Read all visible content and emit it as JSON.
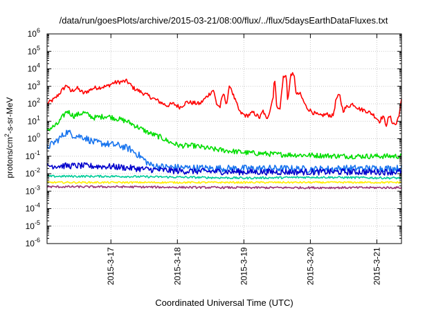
{
  "chart_data": {
    "type": "line",
    "title": "/data/run/goesPlots/archive/2015-03-21/08:00/flux/../flux/5daysEarthDataFluxes.txt",
    "xlabel": "Coordinated Universal Time (UTC)",
    "ylabel": {
      "base": "protons/cm",
      "sup": "2",
      "rest": "-s-sr-MeV"
    },
    "yscale": "log",
    "ylim_exponent": [
      -6,
      6
    ],
    "y_ticks": [
      {
        "exp": -6,
        "base": "10",
        "sup": "-6"
      },
      {
        "exp": -5,
        "base": "10",
        "sup": "-5"
      },
      {
        "exp": -4,
        "base": "10",
        "sup": "-4"
      },
      {
        "exp": -3,
        "base": "10",
        "sup": "-3"
      },
      {
        "exp": -2,
        "base": "10",
        "sup": "-2"
      },
      {
        "exp": -1,
        "base": "10",
        "sup": "-1"
      },
      {
        "exp": 0,
        "base": "10",
        "sup": "0"
      },
      {
        "exp": 1,
        "base": "10",
        "sup": "1"
      },
      {
        "exp": 2,
        "base": "10",
        "sup": "2"
      },
      {
        "exp": 3,
        "base": "10",
        "sup": "3"
      },
      {
        "exp": 4,
        "base": "10",
        "sup": "4"
      },
      {
        "exp": 5,
        "base": "10",
        "sup": "5"
      },
      {
        "exp": 6,
        "base": "10",
        "sup": "6"
      }
    ],
    "x_range_days": [
      0,
      5.33
    ],
    "x_ticks": [
      {
        "t": 0.96,
        "label": "2015-3-17"
      },
      {
        "t": 1.96,
        "label": "2015-3-18"
      },
      {
        "t": 2.96,
        "label": "2015-3-19"
      },
      {
        "t": 3.96,
        "label": "2015-3-20"
      },
      {
        "t": 4.96,
        "label": "2015-3-21"
      }
    ],
    "grid": true,
    "series": [
      {
        "color": "#ff0000",
        "noise": 0.12,
        "points": [
          [
            0,
            2.0
          ],
          [
            0.12,
            2.3
          ],
          [
            0.3,
            3.1
          ],
          [
            0.35,
            2.7
          ],
          [
            0.45,
            2.9
          ],
          [
            0.55,
            2.6
          ],
          [
            0.7,
            2.9
          ],
          [
            0.9,
            3.0
          ],
          [
            1.0,
            3.2
          ],
          [
            1.2,
            3.3
          ],
          [
            1.3,
            2.9
          ],
          [
            1.5,
            2.5
          ],
          [
            1.7,
            2.1
          ],
          [
            1.8,
            1.9
          ],
          [
            1.9,
            2.0
          ],
          [
            2.0,
            1.8
          ],
          [
            2.1,
            2.1
          ],
          [
            2.3,
            2.0
          ],
          [
            2.4,
            2.4
          ],
          [
            2.5,
            2.8
          ],
          [
            2.55,
            2.0
          ],
          [
            2.6,
            1.8
          ],
          [
            2.65,
            2.6
          ],
          [
            2.7,
            2.0
          ],
          [
            2.75,
            3.1
          ],
          [
            2.8,
            2.5
          ],
          [
            2.85,
            2.0
          ],
          [
            2.9,
            1.5
          ],
          [
            3.0,
            1.3
          ],
          [
            3.1,
            1.5
          ],
          [
            3.2,
            1.2
          ],
          [
            3.25,
            1.6
          ],
          [
            3.3,
            1.1
          ],
          [
            3.35,
            1.6
          ],
          [
            3.4,
            2.4
          ],
          [
            3.42,
            3.6
          ],
          [
            3.45,
            2.0
          ],
          [
            3.5,
            1.6
          ],
          [
            3.55,
            3.5
          ],
          [
            3.6,
            3.6
          ],
          [
            3.62,
            2.1
          ],
          [
            3.67,
            3.8
          ],
          [
            3.72,
            3.5
          ],
          [
            3.75,
            2.5
          ],
          [
            3.8,
            2.6
          ],
          [
            3.9,
            1.8
          ],
          [
            4.0,
            1.5
          ],
          [
            4.1,
            1.3
          ],
          [
            4.2,
            1.4
          ],
          [
            4.3,
            1.3
          ],
          [
            4.35,
            2.3
          ],
          [
            4.4,
            2.5
          ],
          [
            4.45,
            1.6
          ],
          [
            4.5,
            1.8
          ],
          [
            4.6,
            2.0
          ],
          [
            4.7,
            1.7
          ],
          [
            4.8,
            1.6
          ],
          [
            4.9,
            1.4
          ],
          [
            5.0,
            1.0
          ],
          [
            5.05,
            1.3
          ],
          [
            5.1,
            0.8
          ],
          [
            5.15,
            1.3
          ],
          [
            5.2,
            0.9
          ],
          [
            5.25,
            0.8
          ],
          [
            5.3,
            1.5
          ],
          [
            5.33,
            2.2
          ]
        ]
      },
      {
        "color": "#00dd00",
        "noise": 0.15,
        "points": [
          [
            0,
            0.5
          ],
          [
            0.15,
            0.8
          ],
          [
            0.3,
            1.6
          ],
          [
            0.4,
            1.3
          ],
          [
            0.55,
            1.5
          ],
          [
            0.7,
            1.2
          ],
          [
            0.9,
            1.3
          ],
          [
            1.0,
            1.2
          ],
          [
            1.2,
            1.0
          ],
          [
            1.35,
            0.7
          ],
          [
            1.55,
            0.3
          ],
          [
            1.7,
            0.1
          ],
          [
            1.85,
            -0.2
          ],
          [
            2.0,
            -0.4
          ],
          [
            2.2,
            -0.4
          ],
          [
            2.5,
            -0.6
          ],
          [
            3.0,
            -0.8
          ],
          [
            3.5,
            -0.9
          ],
          [
            4.0,
            -0.95
          ],
          [
            4.5,
            -1.0
          ],
          [
            5.0,
            -1.0
          ],
          [
            5.33,
            -1.0
          ]
        ]
      },
      {
        "color": "#1874ee",
        "noise": 0.2,
        "points": [
          [
            0,
            -0.5
          ],
          [
            0.15,
            -0.1
          ],
          [
            0.3,
            0.4
          ],
          [
            0.4,
            0.2
          ],
          [
            0.55,
            0.1
          ],
          [
            0.7,
            -0.2
          ],
          [
            0.9,
            -0.3
          ],
          [
            1.1,
            -0.4
          ],
          [
            1.25,
            -0.6
          ],
          [
            1.4,
            -1.0
          ],
          [
            1.55,
            -1.5
          ],
          [
            1.7,
            -1.6
          ],
          [
            2.0,
            -1.65
          ],
          [
            2.5,
            -1.7
          ],
          [
            3.0,
            -1.7
          ],
          [
            3.5,
            -1.7
          ],
          [
            4.0,
            -1.75
          ],
          [
            4.5,
            -1.7
          ],
          [
            5.0,
            -1.7
          ],
          [
            5.33,
            -1.7
          ]
        ]
      },
      {
        "color": "#0000cc",
        "noise": 0.18,
        "points": [
          [
            0,
            -1.55
          ],
          [
            0.5,
            -1.55
          ],
          [
            1.0,
            -1.6
          ],
          [
            1.5,
            -1.75
          ],
          [
            2.0,
            -1.85
          ],
          [
            3.0,
            -1.9
          ],
          [
            4.0,
            -1.9
          ],
          [
            5.33,
            -1.9
          ]
        ]
      },
      {
        "color": "#00cc99",
        "noise": 0.06,
        "points": [
          [
            0,
            -2.15
          ],
          [
            1.0,
            -2.15
          ],
          [
            2.0,
            -2.2
          ],
          [
            3.0,
            -2.25
          ],
          [
            4.0,
            -2.2
          ],
          [
            5.33,
            -2.25
          ]
        ]
      },
      {
        "color": "#ffee00",
        "noise": 0.05,
        "points": [
          [
            0,
            -2.5
          ],
          [
            1.0,
            -2.5
          ],
          [
            2.0,
            -2.5
          ],
          [
            3.0,
            -2.5
          ],
          [
            4.0,
            -2.5
          ],
          [
            5.33,
            -2.5
          ]
        ]
      },
      {
        "color": "#993377",
        "noise": 0.06,
        "points": [
          [
            0,
            -2.75
          ],
          [
            1.0,
            -2.75
          ],
          [
            2.0,
            -2.78
          ],
          [
            3.0,
            -2.8
          ],
          [
            4.0,
            -2.8
          ],
          [
            5.33,
            -2.8
          ]
        ]
      }
    ]
  }
}
